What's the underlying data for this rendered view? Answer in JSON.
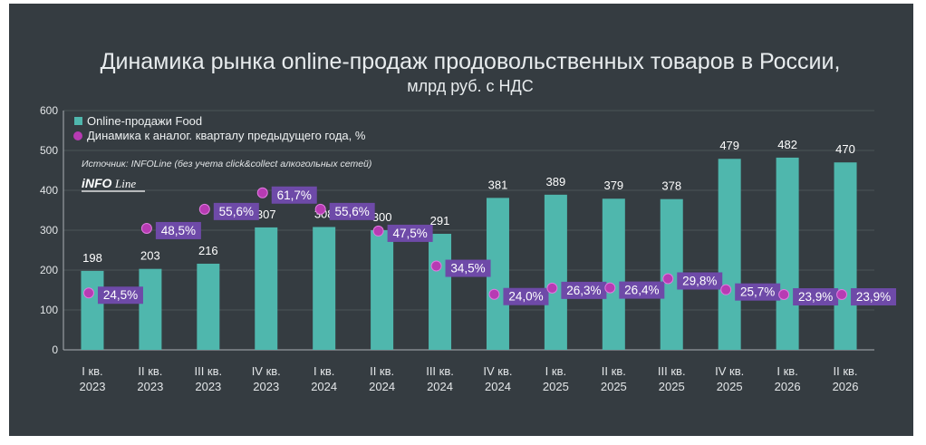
{
  "chart_data": {
    "type": "bar",
    "title": "Динамика рынка online-продаж продовольственных товаров в России,",
    "subtitle": "млрд руб. с НДС",
    "source": "Источник: INFOLine (без учета click&collect алкогольных сетей)",
    "logo": "iNFOLine",
    "ylim": [
      0,
      600
    ],
    "yticks": [
      0,
      100,
      200,
      300,
      400,
      500,
      600
    ],
    "grid": true,
    "legend_position": "top-left",
    "categories": [
      [
        "I кв.",
        "2023"
      ],
      [
        "II кв.",
        "2023"
      ],
      [
        "III кв.",
        "2023"
      ],
      [
        "IV кв.",
        "2023"
      ],
      [
        "I кв.",
        "2024"
      ],
      [
        "II кв.",
        "2024"
      ],
      [
        "III кв.",
        "2024"
      ],
      [
        "IV кв.",
        "2024"
      ],
      [
        "I кв.",
        "2025"
      ],
      [
        "II кв.",
        "2025"
      ],
      [
        "III кв.",
        "2025"
      ],
      [
        "IV кв.",
        "2025"
      ],
      [
        "I кв.",
        "2026"
      ],
      [
        "II кв.",
        "2026"
      ]
    ],
    "series": [
      {
        "name": "Online-продажи Food",
        "type": "bar",
        "color": "#4fb7ad",
        "values": [
          198,
          203,
          216,
          307,
          308,
          300,
          291,
          381,
          389,
          379,
          378,
          479,
          482,
          470
        ],
        "labels": [
          "198",
          "203",
          "216",
          "307",
          "308",
          "300",
          "291",
          "381",
          "389",
          "379",
          "378",
          "479",
          "482",
          "470"
        ]
      },
      {
        "name": "Динамика к аналог. кварталу предыдущего года, %",
        "type": "point",
        "color": "#b73bb3",
        "values": [
          24.5,
          48.5,
          55.6,
          61.7,
          55.6,
          47.5,
          34.5,
          24.0,
          26.3,
          26.4,
          29.8,
          25.7,
          23.9,
          23.9
        ],
        "labels": [
          "24,5%",
          "48,5%",
          "55,6%",
          "61,7%",
          "55,6%",
          "47,5%",
          "34,5%",
          "24,0%",
          "26,3%",
          "26,4%",
          "29,8%",
          "25,7%",
          "23,9%",
          "23,9%"
        ]
      }
    ]
  },
  "colors": {
    "background": "#353c41",
    "grid": "#4b5358",
    "bar": "#4fb7ad",
    "marker": "#b73bb3",
    "label_box": "#6e4aa8"
  }
}
